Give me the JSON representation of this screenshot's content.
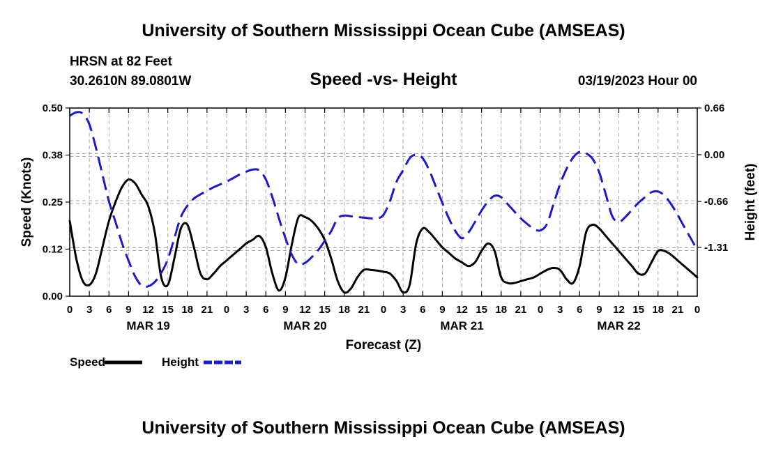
{
  "header": {
    "title": "University of Southern Mississippi Ocean Cube (AMSEAS)",
    "station": "HRSN at 82 Feet",
    "coordinates": "30.2610N  89.0801W",
    "date_hour": "03/19/2023 Hour 00"
  },
  "footer": {
    "title": "University of Southern Mississippi Ocean Cube (AMSEAS)"
  },
  "chart_data": {
    "type": "line",
    "title": "Speed -vs- Height",
    "xlabel": "Forecast (Z)",
    "ylabel_left": "Speed (Knots)",
    "ylabel_right": "Height (feet)",
    "x_range_hours": [
      0,
      96
    ],
    "x_tick_hours": [
      0,
      3,
      6,
      9,
      12,
      15,
      18,
      21,
      24,
      27,
      30,
      33,
      36,
      39,
      42,
      45,
      48,
      51,
      54,
      57,
      60,
      63,
      66,
      69,
      72,
      75,
      78,
      81,
      84,
      87,
      90,
      93,
      96
    ],
    "x_tick_labels": [
      "0",
      "3",
      "6",
      "9",
      "12",
      "15",
      "18",
      "21",
      "0",
      "3",
      "6",
      "9",
      "12",
      "15",
      "18",
      "21",
      "0",
      "3",
      "6",
      "9",
      "12",
      "15",
      "18",
      "21",
      "0",
      "3",
      "6",
      "9",
      "12",
      "15",
      "18",
      "21",
      "0"
    ],
    "day_labels": [
      {
        "hour": 12,
        "label": "MAR 19"
      },
      {
        "hour": 36,
        "label": "MAR 20"
      },
      {
        "hour": 60,
        "label": "MAR 21"
      },
      {
        "hour": 84,
        "label": "MAR 22"
      }
    ],
    "ylim_left": [
      0,
      0.5
    ],
    "yticks_left": [
      0,
      0.125,
      0.25,
      0.375,
      0.5
    ],
    "ytick_labels_left": [
      "0.00",
      "0.12",
      "0.25",
      "0.38",
      "0.50"
    ],
    "ylim_right": [
      -2.0,
      0.66
    ],
    "yticks_right": [
      0.66,
      0.0,
      -0.66,
      -1.31
    ],
    "ytick_labels_right": [
      "0.66",
      "0.00",
      "-0.66",
      "-1.31"
    ],
    "grid": true,
    "legend": {
      "placement": "bottom-left"
    },
    "series": [
      {
        "name": "Speed",
        "axis": "left",
        "color": "#000000",
        "style": "solid",
        "x": [
          0,
          1,
          2,
          3,
          4,
          5,
          6,
          7,
          8,
          9,
          10,
          11,
          12,
          13,
          14,
          15,
          16,
          17,
          18,
          19,
          20,
          21,
          22,
          23,
          24,
          25,
          26,
          27,
          28,
          29,
          30,
          31,
          32,
          33,
          34,
          35,
          36,
          37,
          38,
          39,
          40,
          41,
          42,
          43,
          44,
          45,
          46,
          47,
          48,
          49,
          50,
          51,
          52,
          53,
          54,
          55,
          56,
          57,
          58,
          59,
          60,
          61,
          62,
          63,
          64,
          65,
          66,
          67,
          68,
          69,
          70,
          71,
          72,
          73,
          74,
          75,
          76,
          77,
          78,
          79,
          80,
          81,
          82,
          83,
          84,
          85,
          86,
          87,
          88,
          89,
          90,
          91,
          92,
          93,
          94,
          95,
          96
        ],
        "values": [
          0.2,
          0.1,
          0.04,
          0.03,
          0.06,
          0.13,
          0.2,
          0.25,
          0.29,
          0.31,
          0.3,
          0.27,
          0.24,
          0.17,
          0.05,
          0.03,
          0.1,
          0.18,
          0.19,
          0.13,
          0.06,
          0.045,
          0.06,
          0.08,
          0.095,
          0.11,
          0.125,
          0.14,
          0.15,
          0.16,
          0.13,
          0.06,
          0.015,
          0.05,
          0.14,
          0.21,
          0.21,
          0.2,
          0.18,
          0.15,
          0.1,
          0.04,
          0.01,
          0.02,
          0.05,
          0.07,
          0.07,
          0.068,
          0.065,
          0.06,
          0.04,
          0.01,
          0.03,
          0.14,
          0.18,
          0.17,
          0.15,
          0.13,
          0.115,
          0.1,
          0.09,
          0.08,
          0.09,
          0.12,
          0.14,
          0.12,
          0.05,
          0.035,
          0.035,
          0.04,
          0.045,
          0.05,
          0.06,
          0.07,
          0.075,
          0.07,
          0.045,
          0.035,
          0.08,
          0.17,
          0.19,
          0.18,
          0.16,
          0.14,
          0.12,
          0.1,
          0.08,
          0.06,
          0.06,
          0.09,
          0.12,
          0.12,
          0.11,
          0.095,
          0.08,
          0.065,
          0.05
        ]
      },
      {
        "name": "Height",
        "axis": "right",
        "color": "#1a1acc",
        "style": "dashed",
        "x": [
          0,
          1,
          2,
          3,
          4,
          5,
          6,
          7,
          8,
          9,
          10,
          11,
          12,
          13,
          14,
          15,
          16,
          17,
          18,
          19,
          20,
          21,
          22,
          23,
          24,
          25,
          26,
          27,
          28,
          29,
          30,
          31,
          32,
          33,
          34,
          35,
          36,
          37,
          38,
          39,
          40,
          41,
          42,
          43,
          44,
          45,
          46,
          47,
          48,
          49,
          50,
          51,
          52,
          53,
          54,
          55,
          56,
          57,
          58,
          59,
          60,
          61,
          62,
          63,
          64,
          65,
          66,
          67,
          68,
          69,
          70,
          71,
          72,
          73,
          74,
          75,
          76,
          77,
          78,
          79,
          80,
          81,
          82,
          83,
          84,
          85,
          86,
          87,
          88,
          89,
          90,
          91,
          92,
          93,
          94,
          95,
          96
        ],
        "values": [
          0.55,
          0.6,
          0.58,
          0.43,
          0.1,
          -0.28,
          -0.66,
          -0.95,
          -1.25,
          -1.5,
          -1.72,
          -1.85,
          -1.86,
          -1.8,
          -1.67,
          -1.48,
          -1.18,
          -0.88,
          -0.72,
          -0.62,
          -0.56,
          -0.51,
          -0.46,
          -0.42,
          -0.38,
          -0.33,
          -0.28,
          -0.24,
          -0.21,
          -0.22,
          -0.35,
          -0.6,
          -0.9,
          -1.18,
          -1.42,
          -1.55,
          -1.53,
          -1.45,
          -1.35,
          -1.22,
          -1.08,
          -0.9,
          -0.86,
          -0.87,
          -0.88,
          -0.89,
          -0.9,
          -0.9,
          -0.85,
          -0.65,
          -0.38,
          -0.22,
          -0.05,
          0.0,
          -0.05,
          -0.22,
          -0.45,
          -0.68,
          -0.9,
          -1.08,
          -1.18,
          -1.1,
          -0.95,
          -0.79,
          -0.66,
          -0.58,
          -0.6,
          -0.7,
          -0.8,
          -0.9,
          -0.98,
          -1.05,
          -1.07,
          -0.98,
          -0.7,
          -0.42,
          -0.2,
          -0.04,
          0.04,
          0.02,
          -0.06,
          -0.25,
          -0.56,
          -0.87,
          -0.95,
          -0.88,
          -0.78,
          -0.68,
          -0.6,
          -0.53,
          -0.52,
          -0.58,
          -0.7,
          -0.85,
          -1.02,
          -1.18,
          -1.35
        ]
      }
    ]
  },
  "legend_items": [
    {
      "label": "Speed",
      "color": "#000000",
      "style": "solid"
    },
    {
      "label": "Height",
      "color": "#1a1acc",
      "style": "dashed"
    }
  ]
}
